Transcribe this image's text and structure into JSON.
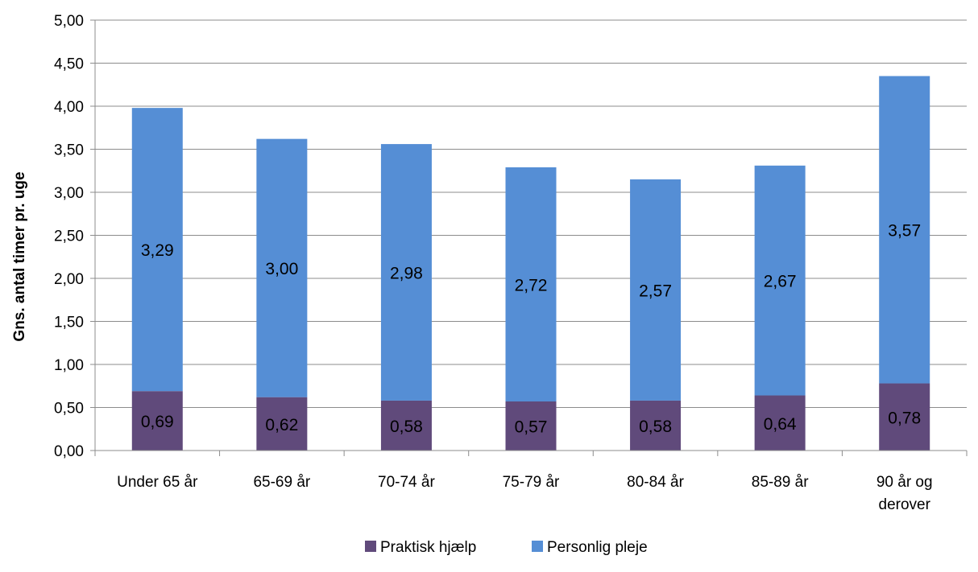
{
  "chart_data": {
    "type": "bar",
    "stacked": true,
    "title": "",
    "xlabel": "",
    "ylabel": "Gns. antal timer pr. uge",
    "ylim": [
      0,
      5
    ],
    "ytick_step": 0.5,
    "ytick_labels": [
      "0,00",
      "0,50",
      "1,00",
      "1,50",
      "2,00",
      "2,50",
      "3,00",
      "3,50",
      "4,00",
      "4,50",
      "5,00"
    ],
    "grid": true,
    "legend_position": "bottom",
    "categories": [
      "Under 65 år",
      "65-69 år",
      "70-74 år",
      "75-79 år",
      "80-84 år",
      "85-89 år",
      "90 år og derover"
    ],
    "series": [
      {
        "name": "Praktisk hjælp",
        "color": "#604a7b",
        "values": [
          0.69,
          0.62,
          0.58,
          0.57,
          0.58,
          0.64,
          0.78
        ],
        "labels": [
          "0,69",
          "0,62",
          "0,58",
          "0,57",
          "0,58",
          "0,64",
          "0,78"
        ]
      },
      {
        "name": "Personlig pleje",
        "color": "#558ed5",
        "values": [
          3.29,
          3.0,
          2.98,
          2.72,
          2.57,
          2.67,
          3.57
        ],
        "labels": [
          "3,29",
          "3,00",
          "2,98",
          "2,72",
          "2,57",
          "2,67",
          "3,57"
        ]
      }
    ]
  }
}
